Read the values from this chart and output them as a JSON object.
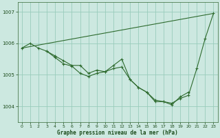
{
  "title": "Graphe pression niveau de la mer (hPa)",
  "background_color": "#cce8e0",
  "grid_color": "#99ccbb",
  "line_color": "#2d6a2d",
  "xlim": [
    -0.5,
    23.5
  ],
  "ylim": [
    1003.5,
    1007.3
  ],
  "yticks": [
    1004,
    1005,
    1006,
    1007
  ],
  "xticks": [
    0,
    1,
    2,
    3,
    4,
    5,
    6,
    7,
    8,
    9,
    10,
    11,
    12,
    13,
    14,
    15,
    16,
    17,
    18,
    19,
    20,
    21,
    22,
    23
  ],
  "line1_x": [
    0,
    1,
    2,
    3,
    4,
    5,
    6,
    7,
    8,
    9,
    10,
    11,
    12,
    13,
    14,
    15,
    16,
    17,
    18,
    19,
    20,
    21,
    22,
    23
  ],
  "line1_y": [
    1005.85,
    1006.0,
    1005.85,
    1005.75,
    1005.6,
    1005.45,
    1005.3,
    1005.3,
    1005.05,
    1005.15,
    1005.1,
    1005.2,
    1005.25,
    1004.85,
    1004.6,
    1004.45,
    1004.2,
    1004.15,
    1004.1,
    1004.25,
    1004.35,
    1005.2,
    1006.15,
    1006.95
  ],
  "line2_x": [
    3,
    4,
    5,
    6,
    7,
    8,
    9,
    10,
    11,
    12,
    13,
    14,
    15,
    16,
    17,
    18,
    19,
    20
  ],
  "line2_y": [
    1005.75,
    1005.55,
    1005.35,
    1005.28,
    1005.05,
    1004.95,
    1005.05,
    1005.1,
    1005.3,
    1005.5,
    1004.85,
    1004.6,
    1004.45,
    1004.15,
    1004.15,
    1004.05,
    1004.3,
    1004.45
  ],
  "line3_x": [
    0,
    23
  ],
  "line3_y": [
    1005.85,
    1006.95
  ]
}
